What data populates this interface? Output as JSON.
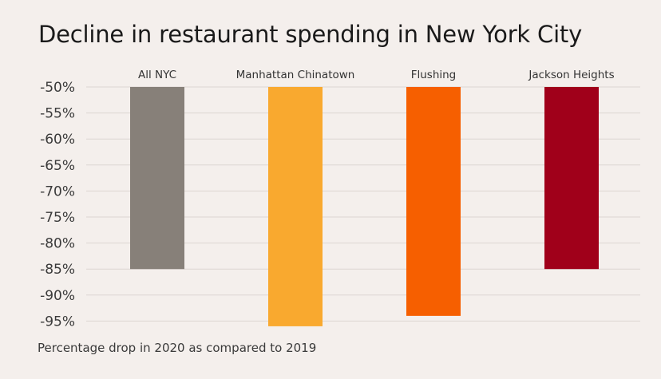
{
  "chart_data": {
    "type": "bar",
    "title": "Decline in restaurant spending in New York City",
    "note": "Percentage drop in 2020 as compared to 2019",
    "categories": [
      "All NYC",
      "Manhattan Chinatown",
      "Flushing",
      "Jackson Heights"
    ],
    "values": [
      -85,
      -96,
      -94,
      -85
    ],
    "colors": [
      "#878079",
      "#f9a92f",
      "#f65f00",
      "#a0001a"
    ],
    "ylim": [
      -50,
      -95
    ],
    "yticks": [
      -50,
      -55,
      -60,
      -65,
      -70,
      -75,
      -80,
      -85,
      -90,
      -95
    ],
    "ytick_labels": [
      "-50%",
      "-55%",
      "-60%",
      "-65%",
      "-70%",
      "-75%",
      "-80%",
      "-85%",
      "-90%",
      "-95%"
    ],
    "grid": true,
    "legend": "none"
  }
}
